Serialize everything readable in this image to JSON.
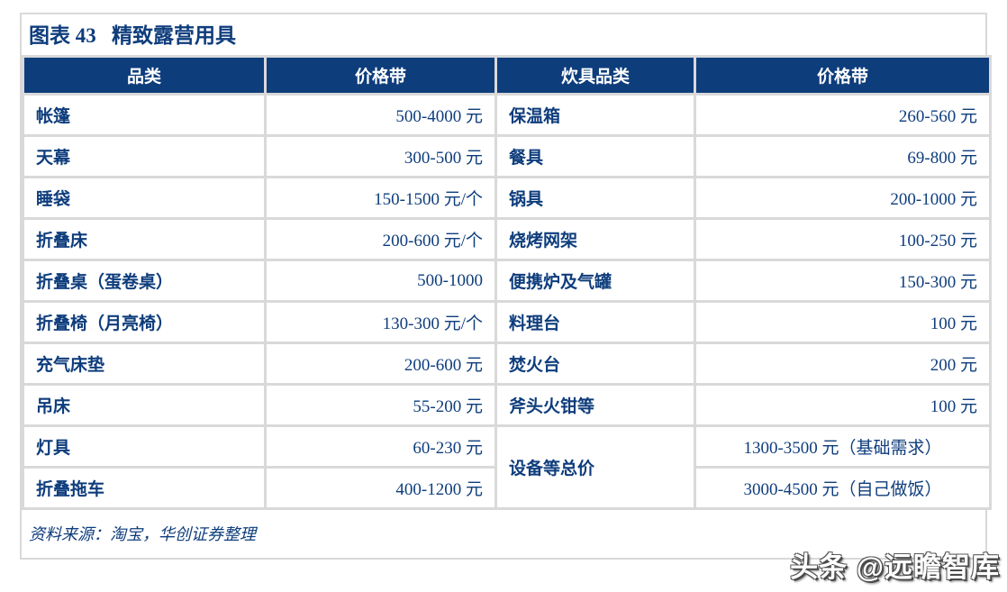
{
  "figure": {
    "title": "图表 43   精致露营用具",
    "source": "资料来源：淘宝，华创证券整理"
  },
  "watermark": "头条 @远瞻智库",
  "colors": {
    "header_bg": "#0e3d7c",
    "header_text": "#ffffff",
    "body_text": "#0e3d7c",
    "highlight_row_bg": "#fbe5d6",
    "border": "#d9d9d9"
  },
  "table": {
    "headers": [
      "品类",
      "价格带",
      "炊具品类",
      "价格带"
    ],
    "left_rows": [
      {
        "category": "帐篷",
        "price": "500-4000 元",
        "highlight": true
      },
      {
        "category": "天幕",
        "price": "300-500 元",
        "highlight": true
      },
      {
        "category": "睡袋",
        "price": "150-1500 元/个",
        "highlight": true
      },
      {
        "category": "折叠床",
        "price": "200-600 元/个",
        "highlight": true
      },
      {
        "category": "折叠桌（蛋卷桌）",
        "price": "500-1000",
        "highlight": true
      },
      {
        "category": "折叠椅（月亮椅）",
        "price": "130-300 元/个",
        "highlight": true
      },
      {
        "category": "充气床垫",
        "price": "200-600 元",
        "highlight": false
      },
      {
        "category": "吊床",
        "price": "55-200 元",
        "highlight": false
      },
      {
        "category": "灯具",
        "price": "60-230 元",
        "highlight": false
      },
      {
        "category": "折叠拖车",
        "price": "400-1200 元",
        "highlight": false
      }
    ],
    "right_rows": [
      {
        "category": "保温箱",
        "price": "260-560 元"
      },
      {
        "category": "餐具",
        "price": "69-800 元"
      },
      {
        "category": "锅具",
        "price": "200-1000 元"
      },
      {
        "category": "烧烤网架",
        "price": "100-250 元"
      },
      {
        "category": "便携炉及气罐",
        "price": "150-300 元"
      },
      {
        "category": "料理台",
        "price": "100 元"
      },
      {
        "category": "焚火台",
        "price": "200 元"
      },
      {
        "category": "斧头火钳等",
        "price": "100 元"
      }
    ],
    "right_merged": {
      "category": "设备等总价",
      "prices": [
        "1300-3500 元（基础需求）",
        "3000-4500 元（自己做饭）"
      ]
    }
  }
}
